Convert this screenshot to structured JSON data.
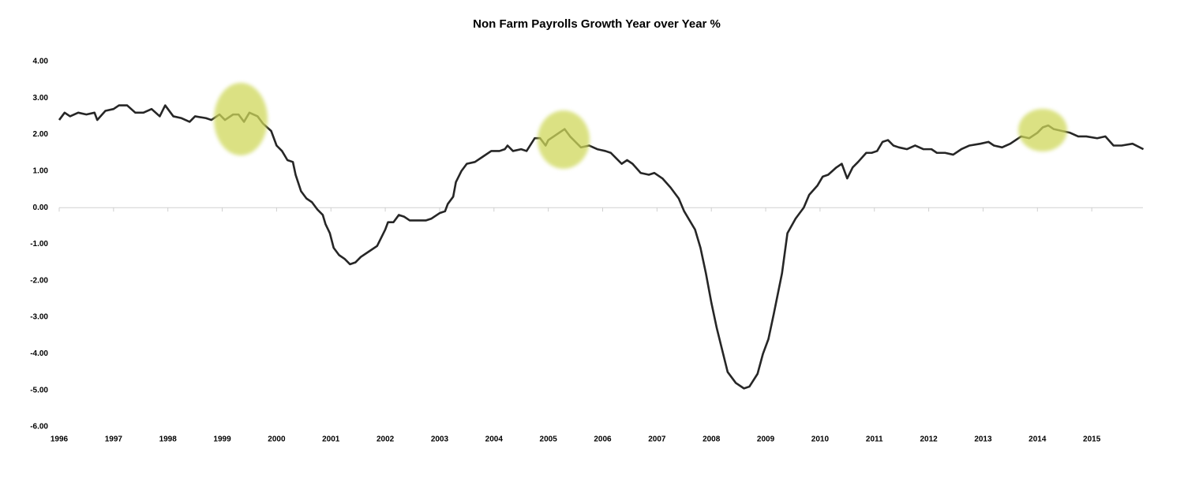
{
  "chart_data": {
    "type": "line",
    "title": "Non Farm Payrolls Growth Year over Year %",
    "x": [
      1996.0,
      1996.1,
      1996.2,
      1996.35,
      1996.5,
      1996.65,
      1996.7,
      1996.85,
      1997.0,
      1997.1,
      1997.25,
      1997.4,
      1997.55,
      1997.7,
      1997.85,
      1997.95,
      1998.1,
      1998.25,
      1998.4,
      1998.5,
      1998.7,
      1998.8,
      1998.95,
      1999.05,
      1999.2,
      1999.3,
      1999.4,
      1999.5,
      1999.65,
      1999.75,
      1999.9,
      2000.0,
      2000.1,
      2000.2,
      2000.3,
      2000.35,
      2000.45,
      2000.55,
      2000.65,
      2000.75,
      2000.85,
      2000.9,
      2000.98,
      2001.05,
      2001.15,
      2001.25,
      2001.35,
      2001.45,
      2001.55,
      2001.7,
      2001.85,
      2002.0,
      2002.05,
      2002.15,
      2002.25,
      2002.35,
      2002.45,
      2002.6,
      2002.75,
      2002.85,
      2003.0,
      2003.1,
      2003.15,
      2003.25,
      2003.3,
      2003.4,
      2003.5,
      2003.65,
      2003.8,
      2003.95,
      2004.1,
      2004.2,
      2004.25,
      2004.35,
      2004.5,
      2004.6,
      2004.75,
      2004.85,
      2004.95,
      2005.0,
      2005.1,
      2005.25,
      2005.3,
      2005.4,
      2005.5,
      2005.6,
      2005.75,
      2005.9,
      2006.05,
      2006.15,
      2006.25,
      2006.35,
      2006.45,
      2006.55,
      2006.7,
      2006.85,
      2006.95,
      2007.1,
      2007.25,
      2007.4,
      2007.5,
      2007.6,
      2007.7,
      2007.8,
      2007.9,
      2008.0,
      2008.1,
      2008.2,
      2008.3,
      2008.45,
      2008.6,
      2008.7,
      2008.85,
      2008.95,
      2009.05,
      2009.15,
      2009.3,
      2009.4,
      2009.55,
      2009.7,
      2009.8,
      2009.95,
      2010.05,
      2010.15,
      2010.3,
      2010.4,
      2010.5,
      2010.6,
      2010.7,
      2010.85,
      2010.95,
      2011.05,
      2011.15,
      2011.25,
      2011.35,
      2011.45,
      2011.6,
      2011.75,
      2011.9,
      2012.05,
      2012.15,
      2012.3,
      2012.45,
      2012.6,
      2012.75,
      2012.95,
      2013.1,
      2013.2,
      2013.35,
      2013.5,
      2013.7,
      2013.85,
      2014.0,
      2014.1,
      2014.2,
      2014.3,
      2014.45,
      2014.6,
      2014.75,
      2014.9,
      2015.1,
      2015.25,
      2015.4,
      2015.55,
      2015.75,
      2015.95
    ],
    "values": [
      2.4,
      2.6,
      2.5,
      2.6,
      2.55,
      2.6,
      2.4,
      2.65,
      2.7,
      2.8,
      2.8,
      2.6,
      2.6,
      2.7,
      2.5,
      2.8,
      2.5,
      2.45,
      2.35,
      2.5,
      2.45,
      2.4,
      2.55,
      2.4,
      2.55,
      2.55,
      2.35,
      2.6,
      2.5,
      2.3,
      2.1,
      1.7,
      1.55,
      1.3,
      1.25,
      0.9,
      0.45,
      0.25,
      0.15,
      -0.05,
      -0.2,
      -0.45,
      -0.7,
      -1.1,
      -1.3,
      -1.4,
      -1.55,
      -1.5,
      -1.35,
      -1.2,
      -1.05,
      -0.6,
      -0.4,
      -0.4,
      -0.2,
      -0.25,
      -0.35,
      -0.35,
      -0.35,
      -0.3,
      -0.15,
      -0.1,
      0.1,
      0.3,
      0.7,
      1.0,
      1.2,
      1.25,
      1.4,
      1.55,
      1.55,
      1.6,
      1.7,
      1.55,
      1.6,
      1.55,
      1.9,
      1.9,
      1.7,
      1.85,
      1.95,
      2.1,
      2.15,
      1.95,
      1.8,
      1.65,
      1.7,
      1.6,
      1.55,
      1.5,
      1.35,
      1.2,
      1.3,
      1.2,
      0.95,
      0.9,
      0.95,
      0.8,
      0.55,
      0.25,
      -0.1,
      -0.35,
      -0.6,
      -1.1,
      -1.8,
      -2.6,
      -3.3,
      -3.9,
      -4.5,
      -4.8,
      -4.95,
      -4.9,
      -4.55,
      -4.0,
      -3.6,
      -2.9,
      -1.8,
      -0.7,
      -0.3,
      0.0,
      0.35,
      0.6,
      0.85,
      0.9,
      1.1,
      1.2,
      0.8,
      1.1,
      1.25,
      1.5,
      1.5,
      1.55,
      1.8,
      1.85,
      1.7,
      1.65,
      1.6,
      1.7,
      1.6,
      1.6,
      1.5,
      1.5,
      1.45,
      1.6,
      1.7,
      1.75,
      1.8,
      1.7,
      1.65,
      1.75,
      1.95,
      1.9,
      2.05,
      2.2,
      2.25,
      2.15,
      2.1,
      2.05,
      1.95,
      1.95,
      1.9,
      1.95,
      1.7,
      1.7,
      1.75,
      1.6
    ],
    "color": "#262626",
    "xlim": [
      1996,
      2016
    ],
    "xticks": [
      1996,
      1997,
      1998,
      1999,
      2000,
      2001,
      2002,
      2003,
      2004,
      2005,
      2006,
      2007,
      2008,
      2009,
      2010,
      2011,
      2012,
      2013,
      2014,
      2015
    ],
    "ylim": [
      -6,
      4
    ],
    "yticks": [
      {
        "value": 4,
        "label": "4.00"
      },
      {
        "value": 3,
        "label": "3.00"
      },
      {
        "value": 2,
        "label": "2.00"
      },
      {
        "value": 1,
        "label": "1.00"
      },
      {
        "value": 0,
        "label": "0.00"
      },
      {
        "value": -1,
        "label": "-1.00"
      },
      {
        "value": -2,
        "label": "-2.00"
      },
      {
        "value": -3,
        "label": "-3.00"
      },
      {
        "value": -4,
        "label": "-4.00"
      },
      {
        "value": -5,
        "label": "-5.00"
      },
      {
        "value": -6,
        "label": "-6.00"
      }
    ]
  }
}
